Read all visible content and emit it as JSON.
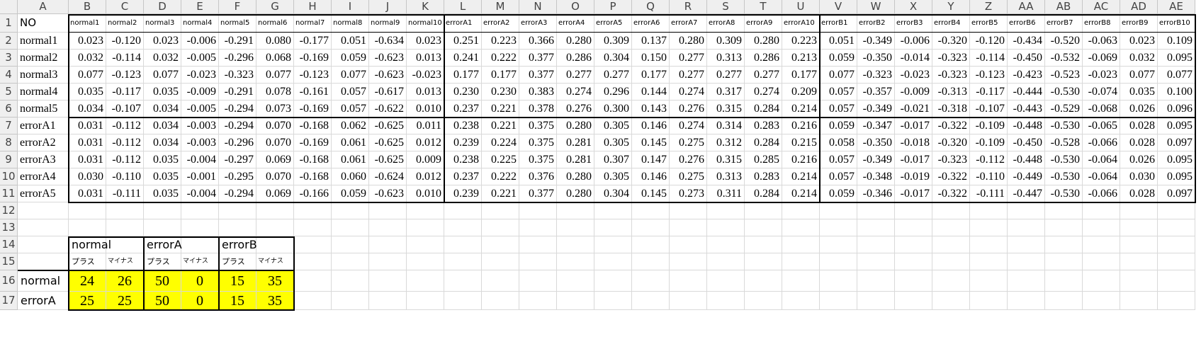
{
  "sheet": {
    "columns": [
      "A",
      "B",
      "C",
      "D",
      "E",
      "F",
      "G",
      "H",
      "I",
      "J",
      "K",
      "L",
      "M",
      "N",
      "O",
      "P",
      "Q",
      "R",
      "S",
      "T",
      "U",
      "V",
      "W",
      "X",
      "Y",
      "Z",
      "AA",
      "AB",
      "AC",
      "AD",
      "AE"
    ],
    "rows": [
      "1",
      "2",
      "3",
      "4",
      "5",
      "6",
      "7",
      "8",
      "9",
      "10",
      "11",
      "12",
      "13",
      "14",
      "15",
      "16",
      "17"
    ],
    "a1": "NO",
    "header_row": [
      "normal1",
      "normal2",
      "normal3",
      "normal4",
      "normal5",
      "normal6",
      "normal7",
      "normal8",
      "normal9",
      "normal10",
      "errorA1",
      "errorA2",
      "errorA3",
      "errorA4",
      "errorA5",
      "errorA6",
      "errorA7",
      "errorA8",
      "errorA9",
      "errorA10",
      "errorB1",
      "errorB2",
      "errorB3",
      "errorB4",
      "errorB5",
      "errorB6",
      "errorB7",
      "errorB8",
      "errorB9",
      "errorB10"
    ],
    "data_rows": [
      {
        "label": "normal1",
        "values": [
          "0.023",
          "-0.120",
          "0.023",
          "-0.006",
          "-0.291",
          "0.080",
          "-0.177",
          "0.051",
          "-0.634",
          "0.023",
          "0.251",
          "0.223",
          "0.366",
          "0.280",
          "0.309",
          "0.137",
          "0.280",
          "0.309",
          "0.280",
          "0.223",
          "0.051",
          "-0.349",
          "-0.006",
          "-0.320",
          "-0.120",
          "-0.434",
          "-0.520",
          "-0.063",
          "0.023",
          "0.109"
        ]
      },
      {
        "label": "normal2",
        "values": [
          "0.032",
          "-0.114",
          "0.032",
          "-0.005",
          "-0.296",
          "0.068",
          "-0.169",
          "0.059",
          "-0.623",
          "0.013",
          "0.241",
          "0.222",
          "0.377",
          "0.286",
          "0.304",
          "0.150",
          "0.277",
          "0.313",
          "0.286",
          "0.213",
          "0.059",
          "-0.350",
          "-0.014",
          "-0.323",
          "-0.114",
          "-0.450",
          "-0.532",
          "-0.069",
          "0.032",
          "0.095"
        ]
      },
      {
        "label": "normal3",
        "values": [
          "0.077",
          "-0.123",
          "0.077",
          "-0.023",
          "-0.323",
          "0.077",
          "-0.123",
          "0.077",
          "-0.623",
          "-0.023",
          "0.177",
          "0.177",
          "0.377",
          "0.277",
          "0.277",
          "0.177",
          "0.277",
          "0.277",
          "0.277",
          "0.177",
          "0.077",
          "-0.323",
          "-0.023",
          "-0.323",
          "-0.123",
          "-0.423",
          "-0.523",
          "-0.023",
          "0.077",
          "0.077"
        ]
      },
      {
        "label": "normal4",
        "values": [
          "0.035",
          "-0.117",
          "0.035",
          "-0.009",
          "-0.291",
          "0.078",
          "-0.161",
          "0.057",
          "-0.617",
          "0.013",
          "0.230",
          "0.230",
          "0.383",
          "0.274",
          "0.296",
          "0.144",
          "0.274",
          "0.317",
          "0.274",
          "0.209",
          "0.057",
          "-0.357",
          "-0.009",
          "-0.313",
          "-0.117",
          "-0.444",
          "-0.530",
          "-0.074",
          "0.035",
          "0.100"
        ]
      },
      {
        "label": "normal5",
        "values": [
          "0.034",
          "-0.107",
          "0.034",
          "-0.005",
          "-0.294",
          "0.073",
          "-0.169",
          "0.057",
          "-0.622",
          "0.010",
          "0.237",
          "0.221",
          "0.378",
          "0.276",
          "0.300",
          "0.143",
          "0.276",
          "0.315",
          "0.284",
          "0.214",
          "0.057",
          "-0.349",
          "-0.021",
          "-0.318",
          "-0.107",
          "-0.443",
          "-0.529",
          "-0.068",
          "0.026",
          "0.096"
        ]
      },
      {
        "label": "errorA1",
        "values": [
          "0.031",
          "-0.112",
          "0.034",
          "-0.003",
          "-0.294",
          "0.070",
          "-0.168",
          "0.062",
          "-0.625",
          "0.011",
          "0.238",
          "0.221",
          "0.375",
          "0.280",
          "0.305",
          "0.146",
          "0.274",
          "0.314",
          "0.283",
          "0.216",
          "0.059",
          "-0.347",
          "-0.017",
          "-0.322",
          "-0.109",
          "-0.448",
          "-0.530",
          "-0.065",
          "0.028",
          "0.095"
        ]
      },
      {
        "label": "errorA2",
        "values": [
          "0.031",
          "-0.112",
          "0.034",
          "-0.003",
          "-0.296",
          "0.070",
          "-0.169",
          "0.061",
          "-0.625",
          "0.012",
          "0.239",
          "0.224",
          "0.375",
          "0.281",
          "0.305",
          "0.145",
          "0.275",
          "0.312",
          "0.284",
          "0.215",
          "0.058",
          "-0.350",
          "-0.018",
          "-0.320",
          "-0.109",
          "-0.450",
          "-0.528",
          "-0.066",
          "0.028",
          "0.097"
        ]
      },
      {
        "label": "errorA3",
        "values": [
          "0.031",
          "-0.112",
          "0.035",
          "-0.004",
          "-0.297",
          "0.069",
          "-0.168",
          "0.061",
          "-0.625",
          "0.009",
          "0.238",
          "0.225",
          "0.375",
          "0.281",
          "0.307",
          "0.147",
          "0.276",
          "0.315",
          "0.285",
          "0.216",
          "0.057",
          "-0.349",
          "-0.017",
          "-0.323",
          "-0.112",
          "-0.448",
          "-0.530",
          "-0.064",
          "0.026",
          "0.095"
        ]
      },
      {
        "label": "errorA4",
        "values": [
          "0.030",
          "-0.110",
          "0.035",
          "-0.001",
          "-0.295",
          "0.070",
          "-0.168",
          "0.060",
          "-0.624",
          "0.012",
          "0.237",
          "0.222",
          "0.376",
          "0.280",
          "0.305",
          "0.146",
          "0.275",
          "0.313",
          "0.283",
          "0.214",
          "0.057",
          "-0.348",
          "-0.019",
          "-0.322",
          "-0.110",
          "-0.449",
          "-0.530",
          "-0.064",
          "0.030",
          "0.095"
        ]
      },
      {
        "label": "errorA5",
        "values": [
          "0.031",
          "-0.111",
          "0.035",
          "-0.004",
          "-0.294",
          "0.069",
          "-0.166",
          "0.059",
          "-0.623",
          "0.010",
          "0.239",
          "0.221",
          "0.377",
          "0.280",
          "0.304",
          "0.145",
          "0.273",
          "0.311",
          "0.284",
          "0.214",
          "0.059",
          "-0.346",
          "-0.017",
          "-0.322",
          "-0.111",
          "-0.447",
          "-0.530",
          "-0.066",
          "0.028",
          "0.097"
        ]
      }
    ],
    "summary": {
      "groups": [
        "normal",
        "errorA",
        "errorB"
      ],
      "sub_labels": [
        "プラス",
        "マイナス",
        "プラス",
        "マイナス",
        "プラス",
        "マイナス"
      ],
      "rows": [
        {
          "label": "normal",
          "values": [
            "24",
            "26",
            "50",
            "0",
            "15",
            "35"
          ]
        },
        {
          "label": "errorA",
          "values": [
            "25",
            "25",
            "50",
            "0",
            "15",
            "35"
          ]
        }
      ]
    },
    "highlight_color": "#ffff00"
  }
}
